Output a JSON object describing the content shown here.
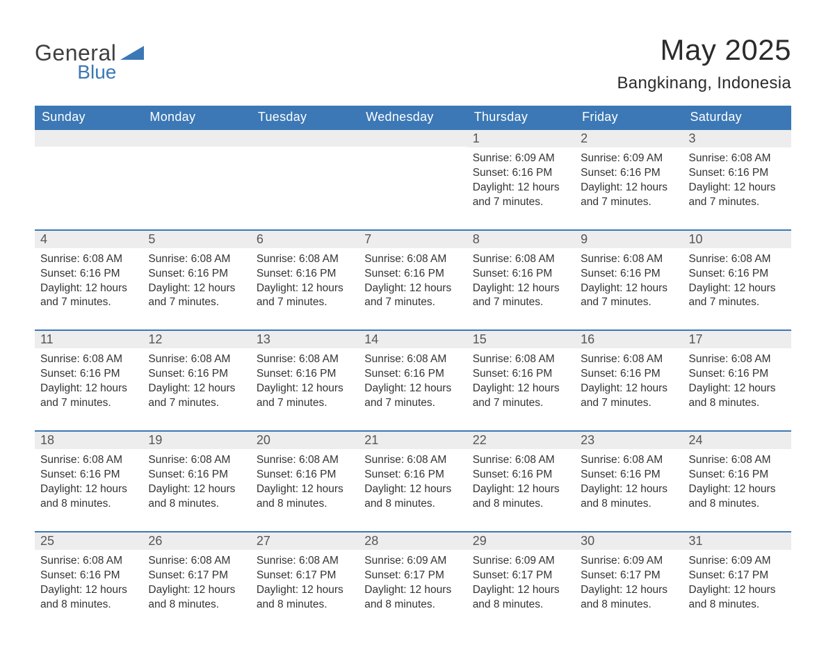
{
  "brand": {
    "name_part1": "General",
    "name_part2": "Blue",
    "logo_color": "#3b78b5",
    "text_color": "#3f3f3f"
  },
  "title": {
    "month_year": "May 2025",
    "location": "Bangkinang, Indonesia"
  },
  "colors": {
    "header_bg": "#3b78b5",
    "header_text": "#ffffff",
    "daynum_bg": "#ededed",
    "day_border": "#3b78b5",
    "body_bg": "#ffffff",
    "text": "#333333"
  },
  "typography": {
    "title_fontsize_pt": 32,
    "location_fontsize_pt": 18,
    "header_fontsize_pt": 14,
    "body_fontsize_pt": 12
  },
  "calendar": {
    "type": "table",
    "columns": [
      "Sunday",
      "Monday",
      "Tuesday",
      "Wednesday",
      "Thursday",
      "Friday",
      "Saturday"
    ],
    "weeks": [
      [
        {
          "day": "",
          "sunrise": "",
          "sunset": "",
          "daylight": ""
        },
        {
          "day": "",
          "sunrise": "",
          "sunset": "",
          "daylight": ""
        },
        {
          "day": "",
          "sunrise": "",
          "sunset": "",
          "daylight": ""
        },
        {
          "day": "",
          "sunrise": "",
          "sunset": "",
          "daylight": ""
        },
        {
          "day": "1",
          "sunrise": "Sunrise: 6:09 AM",
          "sunset": "Sunset: 6:16 PM",
          "daylight": "Daylight: 12 hours and 7 minutes."
        },
        {
          "day": "2",
          "sunrise": "Sunrise: 6:09 AM",
          "sunset": "Sunset: 6:16 PM",
          "daylight": "Daylight: 12 hours and 7 minutes."
        },
        {
          "day": "3",
          "sunrise": "Sunrise: 6:08 AM",
          "sunset": "Sunset: 6:16 PM",
          "daylight": "Daylight: 12 hours and 7 minutes."
        }
      ],
      [
        {
          "day": "4",
          "sunrise": "Sunrise: 6:08 AM",
          "sunset": "Sunset: 6:16 PM",
          "daylight": "Daylight: 12 hours and 7 minutes."
        },
        {
          "day": "5",
          "sunrise": "Sunrise: 6:08 AM",
          "sunset": "Sunset: 6:16 PM",
          "daylight": "Daylight: 12 hours and 7 minutes."
        },
        {
          "day": "6",
          "sunrise": "Sunrise: 6:08 AM",
          "sunset": "Sunset: 6:16 PM",
          "daylight": "Daylight: 12 hours and 7 minutes."
        },
        {
          "day": "7",
          "sunrise": "Sunrise: 6:08 AM",
          "sunset": "Sunset: 6:16 PM",
          "daylight": "Daylight: 12 hours and 7 minutes."
        },
        {
          "day": "8",
          "sunrise": "Sunrise: 6:08 AM",
          "sunset": "Sunset: 6:16 PM",
          "daylight": "Daylight: 12 hours and 7 minutes."
        },
        {
          "day": "9",
          "sunrise": "Sunrise: 6:08 AM",
          "sunset": "Sunset: 6:16 PM",
          "daylight": "Daylight: 12 hours and 7 minutes."
        },
        {
          "day": "10",
          "sunrise": "Sunrise: 6:08 AM",
          "sunset": "Sunset: 6:16 PM",
          "daylight": "Daylight: 12 hours and 7 minutes."
        }
      ],
      [
        {
          "day": "11",
          "sunrise": "Sunrise: 6:08 AM",
          "sunset": "Sunset: 6:16 PM",
          "daylight": "Daylight: 12 hours and 7 minutes."
        },
        {
          "day": "12",
          "sunrise": "Sunrise: 6:08 AM",
          "sunset": "Sunset: 6:16 PM",
          "daylight": "Daylight: 12 hours and 7 minutes."
        },
        {
          "day": "13",
          "sunrise": "Sunrise: 6:08 AM",
          "sunset": "Sunset: 6:16 PM",
          "daylight": "Daylight: 12 hours and 7 minutes."
        },
        {
          "day": "14",
          "sunrise": "Sunrise: 6:08 AM",
          "sunset": "Sunset: 6:16 PM",
          "daylight": "Daylight: 12 hours and 7 minutes."
        },
        {
          "day": "15",
          "sunrise": "Sunrise: 6:08 AM",
          "sunset": "Sunset: 6:16 PM",
          "daylight": "Daylight: 12 hours and 7 minutes."
        },
        {
          "day": "16",
          "sunrise": "Sunrise: 6:08 AM",
          "sunset": "Sunset: 6:16 PM",
          "daylight": "Daylight: 12 hours and 7 minutes."
        },
        {
          "day": "17",
          "sunrise": "Sunrise: 6:08 AM",
          "sunset": "Sunset: 6:16 PM",
          "daylight": "Daylight: 12 hours and 8 minutes."
        }
      ],
      [
        {
          "day": "18",
          "sunrise": "Sunrise: 6:08 AM",
          "sunset": "Sunset: 6:16 PM",
          "daylight": "Daylight: 12 hours and 8 minutes."
        },
        {
          "day": "19",
          "sunrise": "Sunrise: 6:08 AM",
          "sunset": "Sunset: 6:16 PM",
          "daylight": "Daylight: 12 hours and 8 minutes."
        },
        {
          "day": "20",
          "sunrise": "Sunrise: 6:08 AM",
          "sunset": "Sunset: 6:16 PM",
          "daylight": "Daylight: 12 hours and 8 minutes."
        },
        {
          "day": "21",
          "sunrise": "Sunrise: 6:08 AM",
          "sunset": "Sunset: 6:16 PM",
          "daylight": "Daylight: 12 hours and 8 minutes."
        },
        {
          "day": "22",
          "sunrise": "Sunrise: 6:08 AM",
          "sunset": "Sunset: 6:16 PM",
          "daylight": "Daylight: 12 hours and 8 minutes."
        },
        {
          "day": "23",
          "sunrise": "Sunrise: 6:08 AM",
          "sunset": "Sunset: 6:16 PM",
          "daylight": "Daylight: 12 hours and 8 minutes."
        },
        {
          "day": "24",
          "sunrise": "Sunrise: 6:08 AM",
          "sunset": "Sunset: 6:16 PM",
          "daylight": "Daylight: 12 hours and 8 minutes."
        }
      ],
      [
        {
          "day": "25",
          "sunrise": "Sunrise: 6:08 AM",
          "sunset": "Sunset: 6:16 PM",
          "daylight": "Daylight: 12 hours and 8 minutes."
        },
        {
          "day": "26",
          "sunrise": "Sunrise: 6:08 AM",
          "sunset": "Sunset: 6:17 PM",
          "daylight": "Daylight: 12 hours and 8 minutes."
        },
        {
          "day": "27",
          "sunrise": "Sunrise: 6:08 AM",
          "sunset": "Sunset: 6:17 PM",
          "daylight": "Daylight: 12 hours and 8 minutes."
        },
        {
          "day": "28",
          "sunrise": "Sunrise: 6:09 AM",
          "sunset": "Sunset: 6:17 PM",
          "daylight": "Daylight: 12 hours and 8 minutes."
        },
        {
          "day": "29",
          "sunrise": "Sunrise: 6:09 AM",
          "sunset": "Sunset: 6:17 PM",
          "daylight": "Daylight: 12 hours and 8 minutes."
        },
        {
          "day": "30",
          "sunrise": "Sunrise: 6:09 AM",
          "sunset": "Sunset: 6:17 PM",
          "daylight": "Daylight: 12 hours and 8 minutes."
        },
        {
          "day": "31",
          "sunrise": "Sunrise: 6:09 AM",
          "sunset": "Sunset: 6:17 PM",
          "daylight": "Daylight: 12 hours and 8 minutes."
        }
      ]
    ]
  }
}
